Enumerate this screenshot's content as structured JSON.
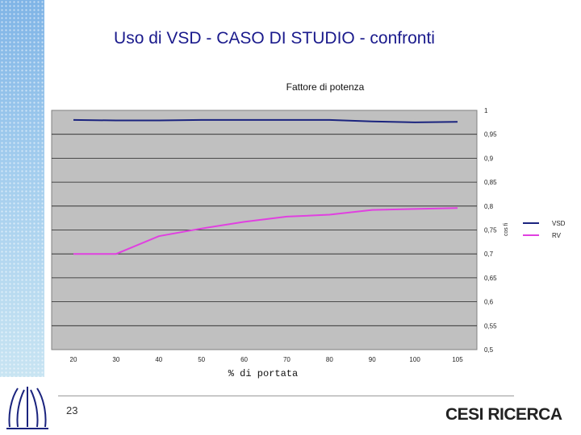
{
  "slide": {
    "title": "Uso di VSD - CASO DI STUDIO - confronti",
    "page_number": "23",
    "brand": "CESI RICERCA"
  },
  "chart_data": {
    "type": "line",
    "title": "Fattore di potenza",
    "xlabel": "% di portata",
    "ylabel": "cos fi",
    "categories": [
      "20",
      "30",
      "40",
      "50",
      "60",
      "70",
      "80",
      "90",
      "100",
      "105"
    ],
    "ylim": [
      0.5,
      1
    ],
    "yticks": [
      "1",
      "0,95",
      "0,9",
      "0,85",
      "0,8",
      "0,75",
      "0,7",
      "0,65",
      "0,6",
      "0,55",
      "0,5"
    ],
    "grid": true,
    "legend_position": "right",
    "series": [
      {
        "name": "VSD",
        "color": "#1a237e",
        "values": [
          0.98,
          0.979,
          0.979,
          0.98,
          0.98,
          0.98,
          0.98,
          0.977,
          0.975,
          0.976
        ]
      },
      {
        "name": "RV",
        "color": "#e040e0",
        "values": [
          0.7,
          0.7,
          0.737,
          0.753,
          0.767,
          0.778,
          0.782,
          0.792,
          0.794,
          0.796
        ]
      }
    ]
  }
}
